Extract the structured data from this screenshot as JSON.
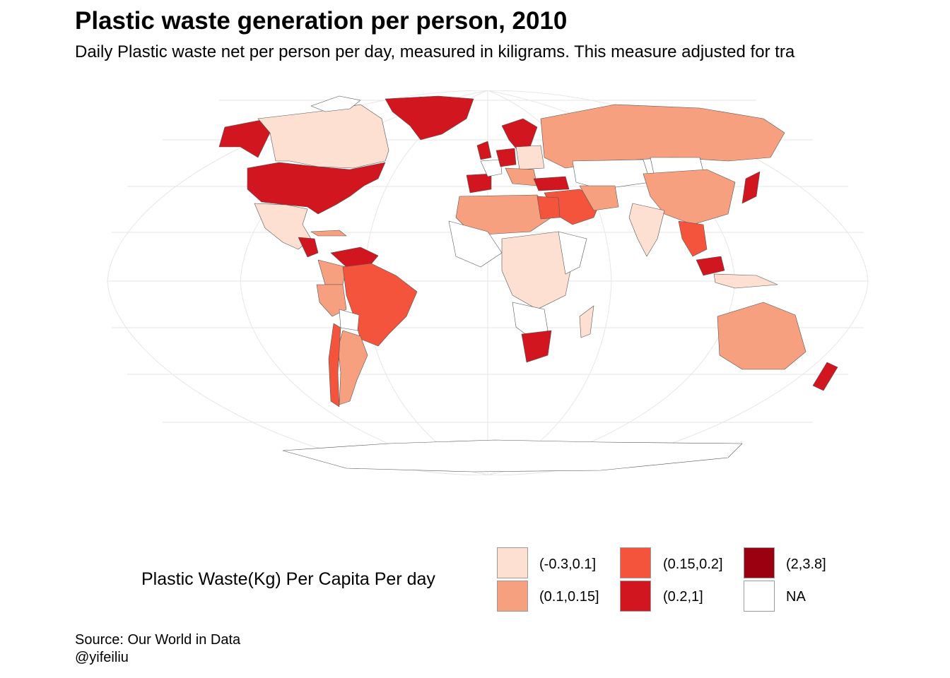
{
  "title": "Plastic waste generation per person, 2010",
  "subtitle": "Daily Plastic waste net per person per day, measured in kiligrams. This measure adjusted for tra",
  "legend": {
    "title": "Plastic Waste(Kg) Per Capita Per day",
    "items": [
      {
        "label": "(-0.3,0.1]",
        "color": "#fde0d2"
      },
      {
        "label": "(0.1,0.15]",
        "color": "#f7a07f"
      },
      {
        "label": "(0.15,0.2]",
        "color": "#f4533c"
      },
      {
        "label": "(0.2,1]",
        "color": "#d2161f"
      },
      {
        "label": "(2,3.8]",
        "color": "#9a0010"
      },
      {
        "label": "NA",
        "color": "#ffffff"
      }
    ]
  },
  "source": "Source: Our World in Data",
  "credit": "@yifeiliu",
  "map_data": {
    "projection": "Robinson",
    "graticule": true,
    "regions": [
      {
        "region": "United States",
        "class": "(0.2,1]"
      },
      {
        "region": "Canada",
        "class": "(-0.3,0.1]"
      },
      {
        "region": "Greenland",
        "class": "(0.2,1]"
      },
      {
        "region": "Mexico",
        "class": "(-0.3,0.1]"
      },
      {
        "region": "Brazil",
        "class": "(0.15,0.2]"
      },
      {
        "region": "Argentina",
        "class": "(0.1,0.15]"
      },
      {
        "region": "Venezuela",
        "class": "(0.2,1]"
      },
      {
        "region": "Russia",
        "class": "(0.1,0.15]"
      },
      {
        "region": "China",
        "class": "(0.1,0.15]"
      },
      {
        "region": "Japan",
        "class": "(0.2,1]"
      },
      {
        "region": "India",
        "class": "(-0.3,0.1]"
      },
      {
        "region": "Australia",
        "class": "(0.1,0.15]"
      },
      {
        "region": "New Zealand",
        "class": "(0.2,1]"
      },
      {
        "region": "South Africa",
        "class": "(0.2,1]"
      },
      {
        "region": "Egypt",
        "class": "(0.15,0.2]"
      },
      {
        "region": "Saudi Arabia",
        "class": "(0.15,0.2]"
      },
      {
        "region": "Spain",
        "class": "(0.2,1]"
      },
      {
        "region": "Germany",
        "class": "(0.2,1]"
      },
      {
        "region": "United Kingdom",
        "class": "(0.2,1]"
      },
      {
        "region": "Turkey",
        "class": "(0.2,1]"
      },
      {
        "region": "Malaysia",
        "class": "(0.2,1]"
      },
      {
        "region": "Thailand",
        "class": "(0.15,0.2]"
      },
      {
        "region": "Antarctica",
        "class": "NA"
      }
    ]
  }
}
